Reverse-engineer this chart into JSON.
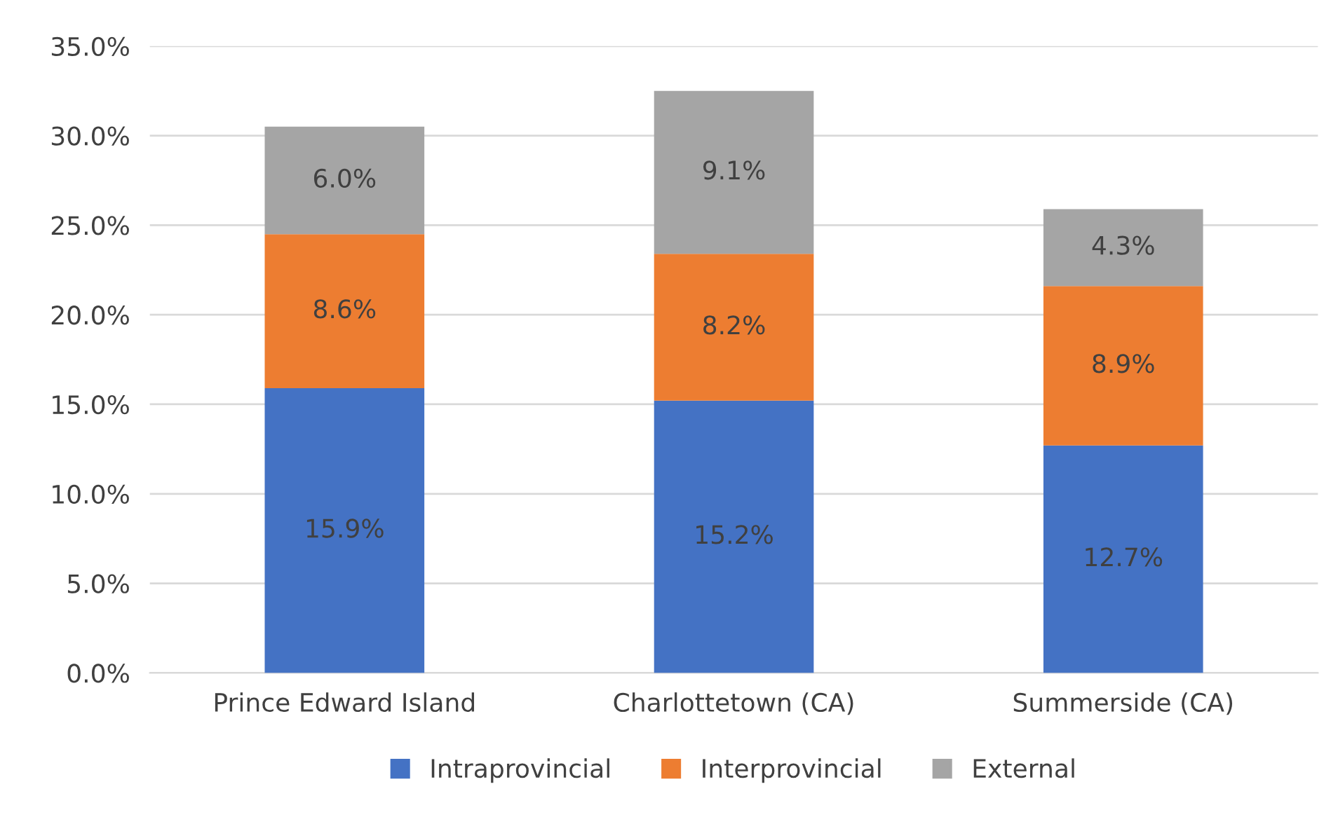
{
  "chart_data": {
    "type": "bar",
    "stacked": true,
    "categories": [
      "Prince Edward Island",
      "Charlottetown (CA)",
      "Summerside (CA)"
    ],
    "series": [
      {
        "name": "Intraprovincial",
        "color": "#4472c4",
        "values": [
          15.9,
          15.2,
          12.7
        ],
        "value_labels": [
          "15.9%",
          "15.2%",
          "12.7%"
        ]
      },
      {
        "name": "Interprovincial",
        "color": "#ed7d31",
        "values": [
          8.6,
          8.2,
          8.9
        ],
        "value_labels": [
          "8.6%",
          "8.2%",
          "8.9%"
        ]
      },
      {
        "name": "External",
        "color": "#a5a5a5",
        "values": [
          6.0,
          9.1,
          4.3
        ],
        "value_labels": [
          "6.0%",
          "9.1%",
          "4.3%"
        ]
      }
    ],
    "ylim": [
      0,
      35
    ],
    "yticks": [
      {
        "value": 0,
        "label": "0.0%"
      },
      {
        "value": 5,
        "label": "5.0%"
      },
      {
        "value": 10,
        "label": "10.0%"
      },
      {
        "value": 15,
        "label": "15.0%"
      },
      {
        "value": 20,
        "label": "20.0%"
      },
      {
        "value": 25,
        "label": "25.0%"
      },
      {
        "value": 30,
        "label": "30.0%"
      },
      {
        "value": 35,
        "label": "35.0%"
      }
    ],
    "grid": "y",
    "legend": "bottom"
  }
}
